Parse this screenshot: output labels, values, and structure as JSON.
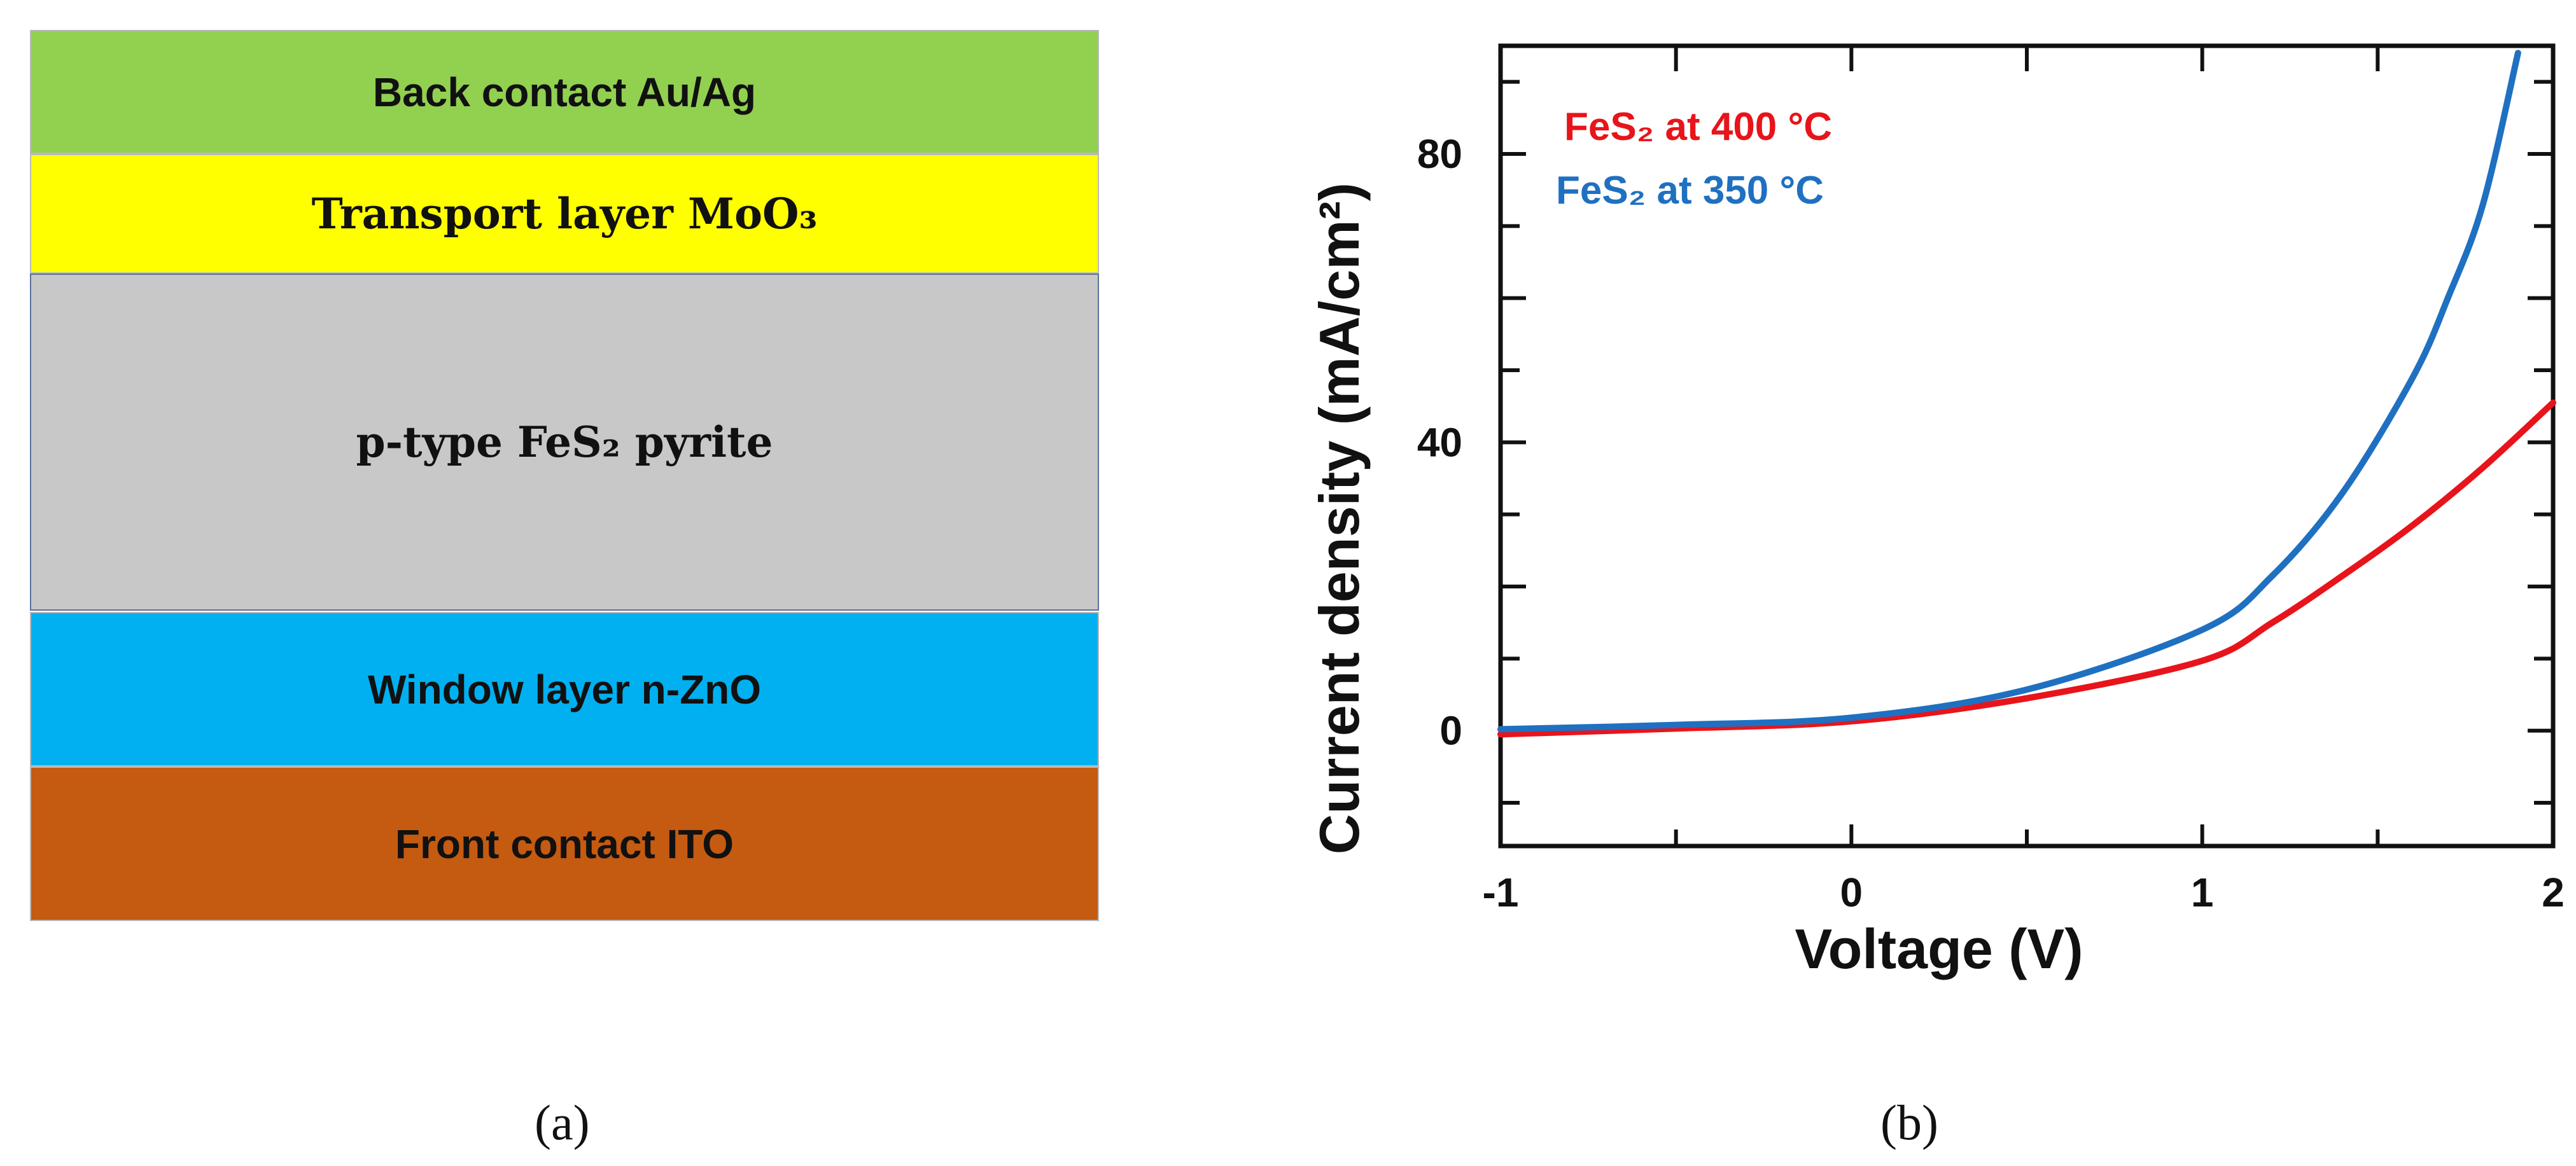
{
  "stack": {
    "layers": [
      {
        "label": "Back contact Au/Ag",
        "color": "#92d050"
      },
      {
        "label": "Transport layer MoO₃",
        "color": "#ffff00"
      },
      {
        "label": "p-type FeS₂ pyrite",
        "color": "#c8c8c8"
      },
      {
        "label": "Window layer n-ZnO",
        "color": "#00b0f0"
      },
      {
        "label": "Front contact ITO",
        "color": "#c55a11"
      }
    ],
    "panel_label": "(a)"
  },
  "chart_data": {
    "type": "line",
    "panel_label": "(b)",
    "xlabel": "Voltage (V)",
    "ylabel": "Current density (mA/cm²)",
    "xlim": [
      -1,
      2
    ],
    "ylim": [
      -16,
      95
    ],
    "x_ticks": [
      -1,
      0,
      1,
      2
    ],
    "y_ticks": [
      0,
      40,
      80
    ],
    "grid": false,
    "legend_position": "top-left",
    "series": [
      {
        "name": "FeS₂ at 400 °C",
        "color": "#e8141b",
        "x": [
          -1,
          -0.5,
          0,
          0.5,
          1.0,
          1.2,
          1.4,
          1.6,
          1.8,
          2.0
        ],
        "y": [
          -0.5,
          0.3,
          1.3,
          4.5,
          9.7,
          15.0,
          21.5,
          28.5,
          36.5,
          45.5
        ]
      },
      {
        "name": "FeS₂ at 350 °C",
        "color": "#1f70c1",
        "x": [
          -1,
          -0.5,
          0,
          0.5,
          1.0,
          1.2,
          1.4,
          1.6,
          1.7,
          1.8,
          1.9
        ],
        "y": [
          0.2,
          0.8,
          1.8,
          5.7,
          14.0,
          21.5,
          33.0,
          49.0,
          60.0,
          73.0,
          94.0
        ]
      }
    ]
  }
}
